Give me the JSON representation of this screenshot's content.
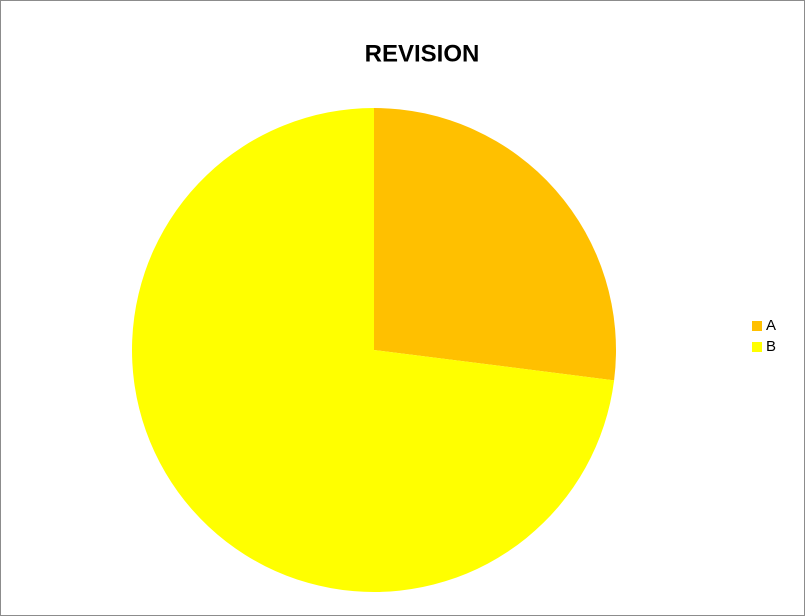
{
  "chart_data": {
    "type": "pie",
    "title": "REVISION",
    "categories": [
      "A",
      "B"
    ],
    "values": [
      27,
      73
    ],
    "colors": [
      "#ffc000",
      "#ffff00"
    ],
    "legend": "right"
  }
}
